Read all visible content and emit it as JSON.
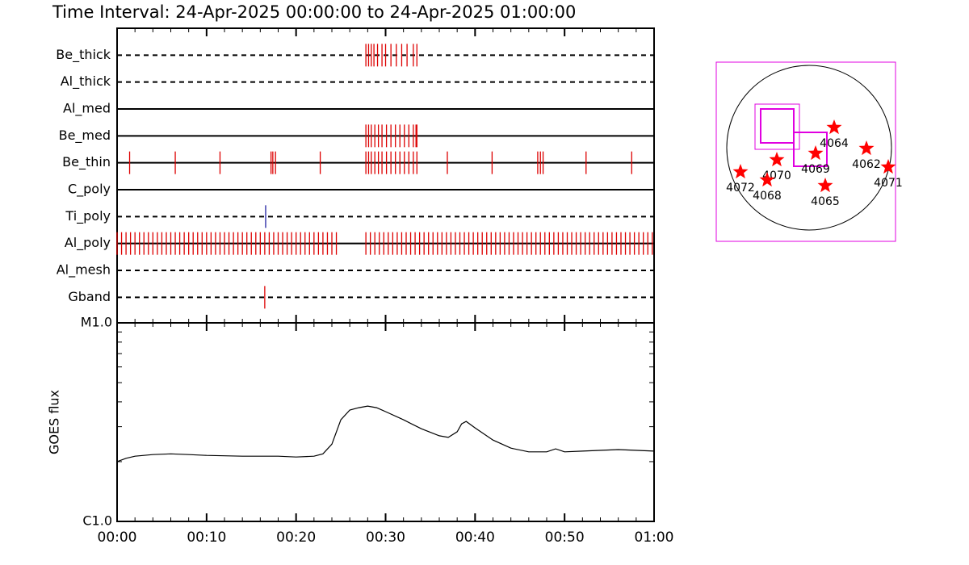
{
  "title": "Time Interval: 24-Apr-2025 00:00:00 to 24-Apr-2025 01:00:00",
  "chart_data": [
    {
      "type": "events",
      "xlim": [
        0,
        60
      ],
      "series": [
        {
          "name": "Be_thick",
          "style": "dashed",
          "color": "#dd0000",
          "values": [
            27.8,
            28.1,
            28.4,
            28.7,
            29.1,
            29.6,
            30.0,
            30.6,
            31.2,
            31.8,
            32.4,
            33.1,
            33.5
          ]
        },
        {
          "name": "Al_thick",
          "style": "dashed",
          "color": "#dd0000",
          "values": []
        },
        {
          "name": "Al_med",
          "style": "solid",
          "color": "#dd0000",
          "values": []
        },
        {
          "name": "Be_med",
          "style": "solid",
          "color": "#dd0000",
          "values": [
            27.8,
            28.1,
            28.4,
            28.8,
            29.2,
            29.6,
            30.1,
            30.6,
            31.1,
            31.6,
            32.1,
            32.6,
            33.1,
            33.4,
            33.5
          ]
        },
        {
          "name": "Be_thin",
          "style": "solid",
          "color": "#dd0000",
          "values": [
            1.4,
            6.5,
            11.5,
            17.2,
            17.4,
            17.7,
            22.7,
            27.8,
            28.1,
            28.4,
            28.8,
            29.2,
            29.6,
            30.1,
            30.6,
            31.1,
            31.6,
            32.1,
            32.6,
            33.1,
            33.5,
            36.9,
            41.9,
            47.0,
            47.3,
            47.6,
            52.4,
            57.5
          ]
        },
        {
          "name": "C_poly",
          "style": "solid",
          "color": "#dd0000",
          "values": []
        },
        {
          "name": "Ti_poly",
          "style": "dashed",
          "color": "#2020a0",
          "values": [
            16.6
          ]
        },
        {
          "name": "Al_poly",
          "style": "solid",
          "color": "#dd0000",
          "values": [
            0,
            0.5,
            1,
            1.5,
            2,
            2.5,
            3,
            3.5,
            4,
            4.5,
            5,
            5.5,
            6,
            6.5,
            7,
            7.5,
            8,
            8.5,
            9,
            9.5,
            10,
            10.5,
            11,
            11.5,
            12,
            12.5,
            13,
            13.5,
            14,
            14.5,
            15,
            15.5,
            16,
            16.5,
            17,
            17.5,
            18,
            18.5,
            19,
            19.5,
            20,
            20.5,
            21,
            21.5,
            22,
            22.5,
            23,
            23.5,
            24,
            24.5,
            27.8,
            28.3,
            28.8,
            29.3,
            29.8,
            30.3,
            30.8,
            31.3,
            31.8,
            32.3,
            32.8,
            33.3,
            33.8,
            34.3,
            34.8,
            35.3,
            35.8,
            36.3,
            36.8,
            37.3,
            37.8,
            38.3,
            38.8,
            39.3,
            39.8,
            40.3,
            40.8,
            41.3,
            41.8,
            42.3,
            42.8,
            43.3,
            43.8,
            44.3,
            44.8,
            45.3,
            45.8,
            46.3,
            46.8,
            47.3,
            47.8,
            48.3,
            48.8,
            49.3,
            49.8,
            50.3,
            50.8,
            51.3,
            51.8,
            52.3,
            52.8,
            53.3,
            53.8,
            54.3,
            54.8,
            55.3,
            55.8,
            56.3,
            56.8,
            57.3,
            57.8,
            58.3,
            58.8,
            59.3,
            59.8
          ]
        },
        {
          "name": "Al_mesh",
          "style": "dashed",
          "color": "#dd0000",
          "values": []
        },
        {
          "name": "Gband",
          "style": "dashed",
          "color": "#dd0000",
          "values": [
            16.5
          ]
        }
      ]
    },
    {
      "type": "line",
      "ylabel": "GOES flux",
      "log_y": true,
      "color": "#000000",
      "xlim": [
        0,
        60
      ],
      "xticks": [
        {
          "value": 0,
          "label": "00:00"
        },
        {
          "value": 10,
          "label": "00:10"
        },
        {
          "value": 20,
          "label": "00:20"
        },
        {
          "value": 30,
          "label": "00:30"
        },
        {
          "value": 40,
          "label": "00:40"
        },
        {
          "value": 50,
          "label": "00:50"
        },
        {
          "value": 60,
          "label": "01:00"
        }
      ],
      "ylim": [
        1e-06,
        1e-05
      ],
      "yticks": [
        {
          "value": 1e-06,
          "label": "C1.0"
        },
        {
          "value": 1e-05,
          "label": "M1.0"
        }
      ],
      "x": [
        0,
        1,
        2,
        4,
        6,
        8,
        10,
        14,
        18,
        20,
        22,
        23,
        24,
        25,
        26,
        27,
        28,
        29,
        30,
        32,
        34,
        36,
        37,
        38,
        38.5,
        39,
        40,
        42,
        44,
        46,
        48,
        49,
        50,
        52,
        56,
        60
      ],
      "values": [
        2e-06,
        2.08e-06,
        2.13e-06,
        2.17e-06,
        2.19e-06,
        2.17e-06,
        2.15e-06,
        2.13e-06,
        2.13e-06,
        2.11e-06,
        2.13e-06,
        2.19e-06,
        2.45e-06,
        3.25e-06,
        3.64e-06,
        3.74e-06,
        3.81e-06,
        3.74e-06,
        3.57e-06,
        3.25e-06,
        2.93e-06,
        2.7e-06,
        2.65e-06,
        2.83e-06,
        3.1e-06,
        3.19e-06,
        2.96e-06,
        2.57e-06,
        2.34e-06,
        2.24e-06,
        2.24e-06,
        2.32e-06,
        2.24e-06,
        2.26e-06,
        2.3e-06,
        2.26e-06
      ]
    }
  ],
  "map": {
    "regions": [
      {
        "label": "4064"
      },
      {
        "label": "4062"
      },
      {
        "label": "4071"
      },
      {
        "label": "4069"
      },
      {
        "label": "4065"
      },
      {
        "label": "4070"
      },
      {
        "label": "4068"
      },
      {
        "label": "4072"
      }
    ]
  }
}
